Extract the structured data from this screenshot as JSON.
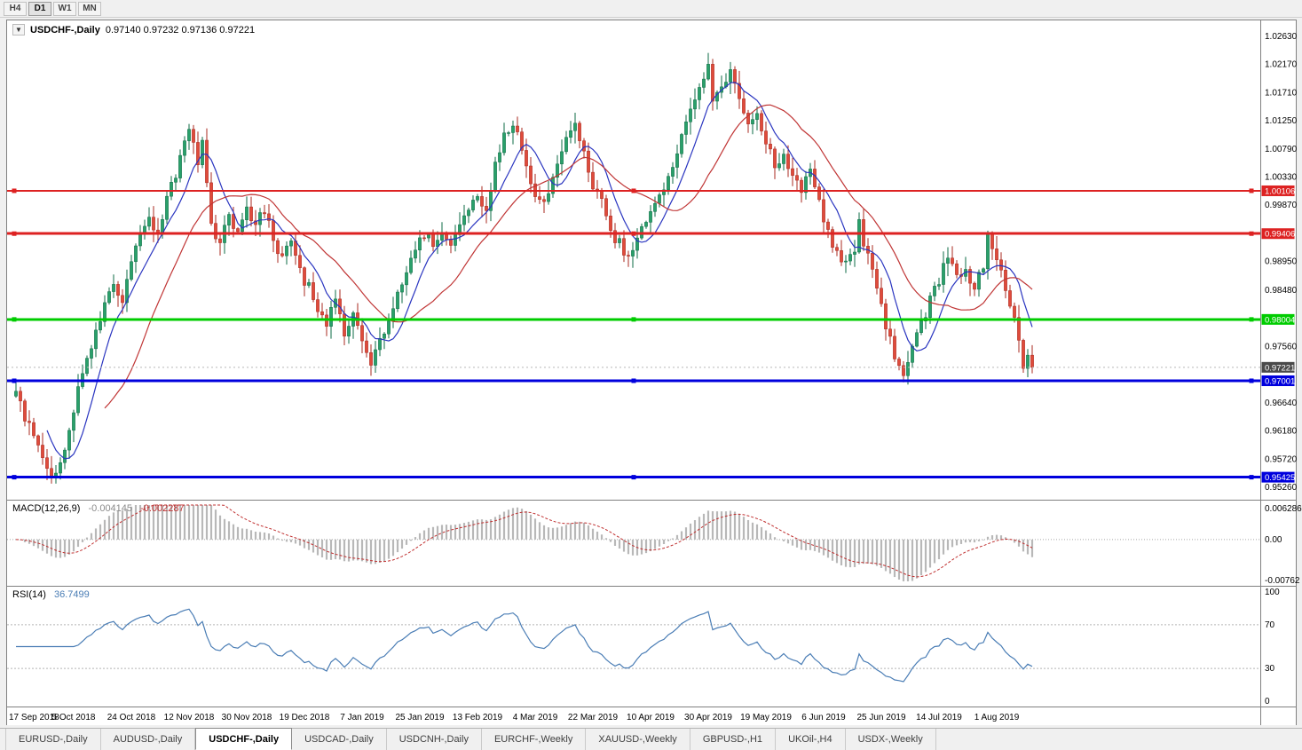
{
  "toolbar": {
    "periods": [
      {
        "label": "H4",
        "active": false
      },
      {
        "label": "D1",
        "active": true
      },
      {
        "label": "W1",
        "active": false
      },
      {
        "label": "MN",
        "active": false
      }
    ]
  },
  "chart": {
    "collapse_icon": "▼",
    "title_symbol": "USDCHF-,Daily",
    "ohlc_text": "0.97140 0.97232 0.97136 0.97221"
  },
  "indicators": {
    "macd_label": "MACD(12,26,9)",
    "macd_value_main": "-0.004145",
    "macd_value_signal": "-0.002287",
    "rsi_label": "RSI(14)",
    "rsi_value": "36.7499"
  },
  "tabs": [
    {
      "label": "EURUSD-,Daily",
      "active": false
    },
    {
      "label": "AUDUSD-,Daily",
      "active": false
    },
    {
      "label": "USDCHF-,Daily",
      "active": true
    },
    {
      "label": "USDCAD-,Daily",
      "active": false
    },
    {
      "label": "USDCNH-,Daily",
      "active": false
    },
    {
      "label": "EURCHF-,Weekly",
      "active": false
    },
    {
      "label": "XAUUSD-,Weekly",
      "active": false
    },
    {
      "label": "GBPUSD-,H1",
      "active": false
    },
    {
      "label": "UKOil-,H4",
      "active": false
    },
    {
      "label": "USDX-,Weekly",
      "active": false
    }
  ],
  "chart_data": {
    "type": "candlestick",
    "symbol": "USDCHF",
    "timeframe": "Daily",
    "ohlc_header": {
      "open": "0.97140",
      "high": "0.97232",
      "low": "0.97136",
      "close": "0.97221"
    },
    "y_axis": {
      "min": 0.9526,
      "max": 1.0263,
      "ticks": [
        "1.02630",
        "1.02170",
        "1.01710",
        "1.01250",
        "1.00790",
        "1.00330",
        "0.99870",
        "0.98950",
        "0.98480",
        "0.97560",
        "0.96640",
        "0.96180",
        "0.95720",
        "0.95260"
      ]
    },
    "x_labels": [
      "17 Sep 2018",
      "5 Oct 2018",
      "24 Oct 2018",
      "12 Nov 2018",
      "30 Nov 2018",
      "19 Dec 2018",
      "7 Jan 2019",
      "25 Jan 2019",
      "13 Feb 2019",
      "4 Mar 2019",
      "22 Mar 2019",
      "10 Apr 2019",
      "30 Apr 2019",
      "19 May 2019",
      "6 Jun 2019",
      "25 Jun 2019",
      "14 Jul 2019",
      "1 Aug 2019"
    ],
    "candles_per_label": 13,
    "num_candles": 230,
    "hlines": [
      {
        "price": 1.00106,
        "label": "1.00106",
        "color": "#dd2222",
        "width": 2
      },
      {
        "price": 0.99406,
        "label": "0.99406",
        "color": "#dd2222",
        "width": 3
      },
      {
        "price": 0.98004,
        "label": "0.98004",
        "color": "#00cc00",
        "width": 3
      },
      {
        "price": 0.97001,
        "label": "0.97001",
        "color": "#0000dd",
        "width": 3
      },
      {
        "price": 0.95425,
        "label": "0.95425",
        "color": "#0000dd",
        "width": 3
      }
    ],
    "current_price": {
      "value": 0.97221,
      "label": "0.97221",
      "bg": "#4a4a4a"
    },
    "price_path": [
      [
        0,
        0.9675
      ],
      [
        2,
        0.9642
      ],
      [
        4,
        0.961
      ],
      [
        6,
        0.9572
      ],
      [
        8,
        0.9549
      ],
      [
        10,
        0.9562
      ],
      [
        12,
        0.9615
      ],
      [
        14,
        0.9698
      ],
      [
        16,
        0.9742
      ],
      [
        18,
        0.9778
      ],
      [
        20,
        0.982
      ],
      [
        22,
        0.9856
      ],
      [
        24,
        0.9832
      ],
      [
        26,
        0.9888
      ],
      [
        28,
        0.994
      ],
      [
        30,
        0.9968
      ],
      [
        32,
        0.994
      ],
      [
        34,
        1.0005
      ],
      [
        36,
        1.004
      ],
      [
        38,
        1.0095
      ],
      [
        39,
        1.012
      ],
      [
        40,
        1.0092
      ],
      [
        41,
        1.0058
      ],
      [
        42,
        1.01
      ],
      [
        44,
        0.9952
      ],
      [
        46,
        0.9925
      ],
      [
        48,
        0.9972
      ],
      [
        50,
        0.9938
      ],
      [
        52,
        0.9978
      ],
      [
        54,
        0.9952
      ],
      [
        56,
        0.9982
      ],
      [
        58,
        0.993
      ],
      [
        60,
        0.9902
      ],
      [
        62,
        0.9932
      ],
      [
        64,
        0.9878
      ],
      [
        66,
        0.9852
      ],
      [
        68,
        0.9818
      ],
      [
        70,
        0.9798
      ],
      [
        72,
        0.9826
      ],
      [
        74,
        0.9782
      ],
      [
        76,
        0.9812
      ],
      [
        78,
        0.9772
      ],
      [
        80,
        0.9722
      ],
      [
        82,
        0.9762
      ],
      [
        84,
        0.9806
      ],
      [
        86,
        0.984
      ],
      [
        88,
        0.9876
      ],
      [
        90,
        0.9916
      ],
      [
        92,
        0.994
      ],
      [
        94,
        0.9924
      ],
      [
        96,
        0.9946
      ],
      [
        98,
        0.992
      ],
      [
        100,
        0.9952
      ],
      [
        102,
        0.9976
      ],
      [
        104,
        1.0002
      ],
      [
        106,
        0.9986
      ],
      [
        108,
        1.0052
      ],
      [
        110,
        1.0098
      ],
      [
        112,
        1.0124
      ],
      [
        114,
        1.0078
      ],
      [
        116,
        1.0018
      ],
      [
        118,
        0.999
      ],
      [
        120,
        1.0012
      ],
      [
        122,
        1.0062
      ],
      [
        124,
        1.0102
      ],
      [
        126,
        1.0122
      ],
      [
        128,
        1.0072
      ],
      [
        130,
        1.0022
      ],
      [
        132,
        0.9992
      ],
      [
        134,
        0.9942
      ],
      [
        136,
        0.9926
      ],
      [
        138,
        0.9896
      ],
      [
        140,
        0.9932
      ],
      [
        142,
        0.9956
      ],
      [
        144,
        0.9992
      ],
      [
        146,
        1.0018
      ],
      [
        148,
        1.0055
      ],
      [
        150,
        1.0098
      ],
      [
        152,
        1.0142
      ],
      [
        154,
        1.0186
      ],
      [
        156,
        1.0218
      ],
      [
        157,
        1.0152
      ],
      [
        159,
        1.0178
      ],
      [
        161,
        1.0202
      ],
      [
        163,
        1.0162
      ],
      [
        165,
        1.0122
      ],
      [
        167,
        1.0142
      ],
      [
        169,
        1.0092
      ],
      [
        171,
        1.0052
      ],
      [
        173,
        1.0066
      ],
      [
        175,
        1.0032
      ],
      [
        177,
        1.0012
      ],
      [
        179,
        1.0038
      ],
      [
        181,
        0.9992
      ],
      [
        183,
        0.994
      ],
      [
        185,
        0.9906
      ],
      [
        187,
        0.9892
      ],
      [
        189,
        0.9912
      ],
      [
        190,
        0.9956
      ],
      [
        192,
        0.9902
      ],
      [
        194,
        0.9852
      ],
      [
        196,
        0.9792
      ],
      [
        198,
        0.9742
      ],
      [
        200,
        0.97
      ],
      [
        202,
        0.9756
      ],
      [
        204,
        0.9792
      ],
      [
        206,
        0.9832
      ],
      [
        208,
        0.9866
      ],
      [
        210,
        0.9902
      ],
      [
        212,
        0.9882
      ],
      [
        214,
        0.9876
      ],
      [
        216,
        0.985
      ],
      [
        218,
        0.9892
      ],
      [
        219,
        0.9934
      ],
      [
        221,
        0.9906
      ],
      [
        223,
        0.9856
      ],
      [
        225,
        0.9802
      ],
      [
        226,
        0.9766
      ],
      [
        227,
        0.9716
      ],
      [
        228,
        0.9748
      ],
      [
        229,
        0.97221
      ]
    ],
    "colors": {
      "bull": "#29a06a",
      "bull_stroke": "#0e6b45",
      "bear": "#df4b3b",
      "bear_stroke": "#a8291f",
      "ma_fast": "#2a35c0",
      "ma_slow": "#c03535",
      "rsi": "#4a7db5",
      "macd_hist": "#b8b8b8",
      "macd_signal": "#c03030"
    },
    "ma_periods": {
      "fast": 8,
      "slow": 21
    },
    "macd": {
      "params": [
        12,
        26,
        9
      ],
      "axis_top": "0.006286",
      "axis_zero": "0.00",
      "axis_bottom": "-0.00762",
      "range": [
        -0.00762,
        0.006286
      ],
      "current_main": -0.004145,
      "current_signal": -0.002287
    },
    "rsi": {
      "period": 14,
      "axis": [
        "100",
        "70",
        "30",
        "0"
      ],
      "levels": [
        70,
        30
      ],
      "range": [
        0,
        100
      ],
      "current": 36.7499
    }
  }
}
